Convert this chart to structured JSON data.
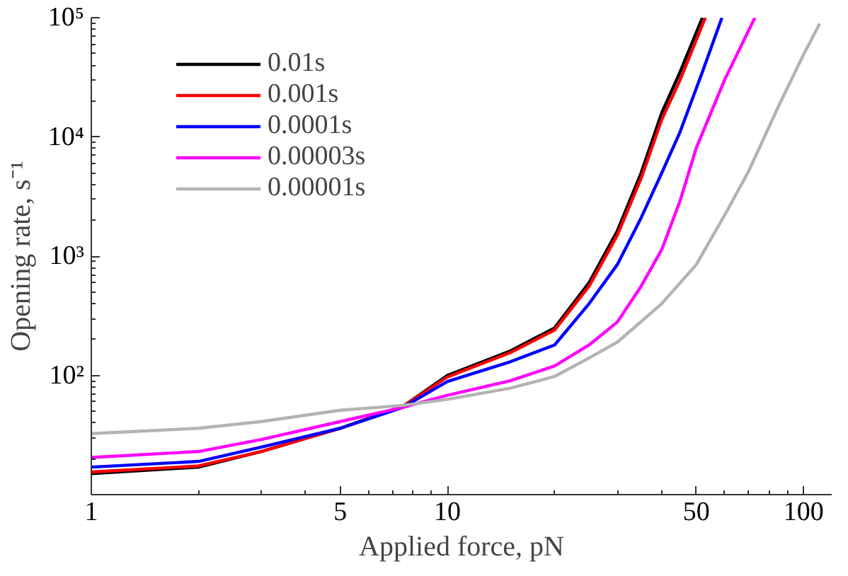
{
  "chart_data": {
    "type": "line",
    "xlabel": "Applied force, pN",
    "ylabel": "Opening rate, s⁻¹",
    "log": "xy",
    "grid": false,
    "legend": "top left",
    "marker": "none",
    "line_style": "solid",
    "xlim": [
      1,
      120
    ],
    "ylim": [
      10,
      100000
    ],
    "xticks": [
      1,
      5,
      10,
      50,
      100
    ],
    "yticks": [
      {
        "value": 100,
        "label": "10²"
      },
      {
        "value": 1000,
        "label": "10³"
      },
      {
        "value": 10000,
        "label": "10⁴"
      },
      {
        "value": 100000,
        "label": "10⁵"
      }
    ],
    "series": [
      {
        "name": "0.01s",
        "color": "#000000",
        "x": [
          1,
          2,
          3,
          5,
          7.5,
          10,
          15,
          20,
          25,
          30,
          35,
          40,
          45,
          52
        ],
        "values": [
          15,
          17,
          23,
          36,
          55,
          100,
          160,
          250,
          600,
          1630,
          5000,
          16000,
          35000,
          100000
        ]
      },
      {
        "name": "0.001s",
        "color": "#ff0000",
        "x": [
          1,
          2,
          3,
          5,
          7.5,
          10,
          15,
          20,
          25,
          30,
          35,
          40,
          45,
          53
        ],
        "values": [
          15.5,
          17.4,
          23,
          36,
          55,
          97,
          155,
          240,
          560,
          1500,
          4500,
          14000,
          30000,
          100000
        ]
      },
      {
        "name": "0.0001s",
        "color": "#0000ff",
        "x": [
          1,
          2,
          3,
          5,
          7.5,
          10,
          15,
          20,
          25,
          30,
          35,
          40,
          45,
          52,
          59
        ],
        "values": [
          17,
          19,
          25,
          36,
          54,
          89,
          130,
          180,
          400,
          850,
          2100,
          5000,
          11000,
          35000,
          100000
        ]
      },
      {
        "name": "0.00003s",
        "color": "#ff00ff",
        "x": [
          1,
          2,
          3,
          5,
          7.5,
          10,
          15,
          20,
          25,
          30,
          35,
          40,
          45,
          50,
          60,
          73
        ],
        "values": [
          20.5,
          23,
          29,
          41,
          54,
          68,
          90,
          120,
          180,
          280,
          560,
          1140,
          2900,
          8100,
          30000,
          100000
        ]
      },
      {
        "name": "0.00001s",
        "color": "#b3b3b3",
        "x": [
          1,
          2,
          3,
          5,
          7.5,
          10,
          15,
          20,
          25,
          30,
          40,
          50,
          60,
          70,
          85,
          100,
          111
        ],
        "values": [
          32.5,
          36,
          41,
          51,
          56,
          63,
          78,
          98,
          140,
          190,
          400,
          850,
          2200,
          5100,
          18000,
          49000,
          89000
        ]
      }
    ]
  }
}
